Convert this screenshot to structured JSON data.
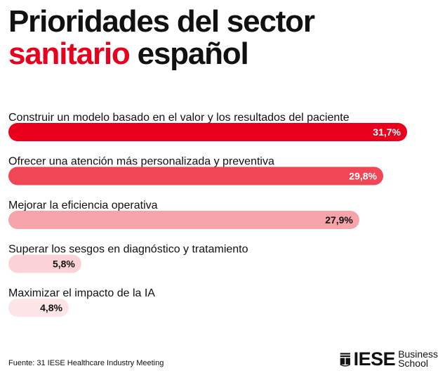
{
  "header": {
    "title_line1": "Prioridades del sector",
    "title_accent": "sanitario",
    "title_rest": "español"
  },
  "colors": {
    "accent": "#e8001c",
    "bar_1": "#e8001c",
    "bar_2": "#f04655",
    "bar_3": "#f6a3a9",
    "bar_4": "#fbd3d6",
    "bar_5": "#fde4e6"
  },
  "chart_data": {
    "type": "bar",
    "orientation": "horizontal",
    "categories": [
      "Construir un modelo basado en el valor y los resultados del paciente",
      "Ofrecer una atención más personalizada y preventiva",
      "Mejorar la eficiencia operativa",
      "Superar los sesgos en diagnóstico y tratamiento",
      "Maximizar el impacto de la IA"
    ],
    "values": [
      31.7,
      29.8,
      27.9,
      5.8,
      4.8
    ],
    "value_labels": [
      "31,7%",
      "29,8%",
      "27,9%",
      "5,8%",
      "4,8%"
    ],
    "title": "Prioridades del sector sanitario español",
    "xlabel": "",
    "ylabel": "",
    "grid": false
  },
  "footer": {
    "source": "Fuente: 31 IESE Healthcare Industry Meeting",
    "logo_word": "IESE",
    "logo_sub_1": "Business",
    "logo_sub_2": "School",
    "logo_icon": "iese-shield-icon"
  }
}
